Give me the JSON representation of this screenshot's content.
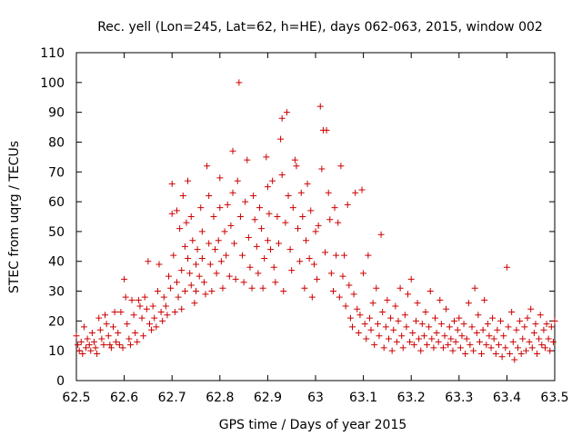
{
  "chart_data": {
    "type": "scatter",
    "title": "Rec. yell (Lon=245, Lat=62, h=HE), days 062-063, 2015, window 002",
    "xlabel": "GPS time / Days of year 2015",
    "ylabel": "STEC from uqrg / TECUs",
    "xlim": [
      62.5,
      63.5
    ],
    "ylim": [
      0,
      110
    ],
    "xticks": [
      62.5,
      62.6,
      62.7,
      62.8,
      62.9,
      63,
      63.1,
      63.2,
      63.3,
      63.4,
      63.5
    ],
    "xtick_labels": [
      "62.5",
      "62.6",
      "62.7",
      "62.8",
      "62.9",
      "63",
      "63.1",
      "63.2",
      "63.3",
      "63.4",
      "63.5"
    ],
    "yticks": [
      0,
      10,
      20,
      30,
      40,
      50,
      60,
      70,
      80,
      90,
      100,
      110
    ],
    "ytick_labels": [
      "0",
      "10",
      "20",
      "30",
      "40",
      "50",
      "60",
      "70",
      "80",
      "90",
      "100",
      "110"
    ],
    "grid": false,
    "legend": "none",
    "marker": "+",
    "color": "#cc0000",
    "series": [
      {
        "points": [
          [
            62.5,
            15
          ],
          [
            62.503,
            12
          ],
          [
            62.506,
            10
          ],
          [
            62.51,
            13
          ],
          [
            62.513,
            9
          ],
          [
            62.516,
            18
          ],
          [
            62.52,
            11
          ],
          [
            62.523,
            14
          ],
          [
            62.527,
            12
          ],
          [
            62.53,
            10
          ],
          [
            62.533,
            16
          ],
          [
            62.537,
            13
          ],
          [
            62.54,
            11
          ],
          [
            62.543,
            9
          ],
          [
            62.547,
            21
          ],
          [
            62.55,
            17
          ],
          [
            62.553,
            14
          ],
          [
            62.557,
            12
          ],
          [
            62.56,
            22
          ],
          [
            62.563,
            19
          ],
          [
            62.567,
            15
          ],
          [
            62.57,
            12
          ],
          [
            62.573,
            11
          ],
          [
            62.577,
            18
          ],
          [
            62.58,
            23
          ],
          [
            62.583,
            13
          ],
          [
            62.587,
            16
          ],
          [
            62.59,
            12
          ],
          [
            62.593,
            23
          ],
          [
            62.597,
            11
          ],
          [
            62.6,
            34
          ],
          [
            62.603,
            28
          ],
          [
            62.606,
            19
          ],
          [
            62.61,
            14
          ],
          [
            62.613,
            12
          ],
          [
            62.616,
            27
          ],
          [
            62.62,
            22
          ],
          [
            62.623,
            16
          ],
          [
            62.627,
            13
          ],
          [
            62.63,
            27
          ],
          [
            62.633,
            25
          ],
          [
            62.637,
            21
          ],
          [
            62.64,
            15
          ],
          [
            62.643,
            28
          ],
          [
            62.647,
            24
          ],
          [
            62.65,
            40
          ],
          [
            62.653,
            19
          ],
          [
            62.657,
            17
          ],
          [
            62.66,
            25
          ],
          [
            62.663,
            21
          ],
          [
            62.667,
            18
          ],
          [
            62.67,
            30
          ],
          [
            62.673,
            39
          ],
          [
            62.677,
            23
          ],
          [
            62.68,
            20
          ],
          [
            62.683,
            28
          ],
          [
            62.687,
            25
          ],
          [
            62.69,
            22
          ],
          [
            62.693,
            35
          ],
          [
            62.697,
            31
          ],
          [
            62.7,
            66
          ],
          [
            62.7,
            56
          ],
          [
            62.703,
            42
          ],
          [
            62.706,
            23
          ],
          [
            62.71,
            57
          ],
          [
            62.71,
            33
          ],
          [
            62.713,
            28
          ],
          [
            62.716,
            51
          ],
          [
            62.72,
            37
          ],
          [
            62.72,
            24
          ],
          [
            62.723,
            62
          ],
          [
            62.727,
            45
          ],
          [
            62.727,
            30
          ],
          [
            62.73,
            53
          ],
          [
            62.733,
            67
          ],
          [
            62.733,
            41
          ],
          [
            62.737,
            36
          ],
          [
            62.74,
            55
          ],
          [
            62.74,
            32
          ],
          [
            62.743,
            47
          ],
          [
            62.747,
            26
          ],
          [
            62.75,
            39
          ],
          [
            62.75,
            30
          ],
          [
            62.753,
            44
          ],
          [
            62.757,
            35
          ],
          [
            62.76,
            58
          ],
          [
            62.763,
            50
          ],
          [
            62.763,
            41
          ],
          [
            62.767,
            33
          ],
          [
            62.77,
            29
          ],
          [
            62.773,
            72
          ],
          [
            62.777,
            62
          ],
          [
            62.777,
            46
          ],
          [
            62.78,
            39
          ],
          [
            62.783,
            30
          ],
          [
            62.787,
            55
          ],
          [
            62.79,
            44
          ],
          [
            62.793,
            36
          ],
          [
            62.797,
            47
          ],
          [
            62.8,
            68
          ],
          [
            62.8,
            58
          ],
          [
            62.803,
            40
          ],
          [
            62.806,
            31
          ],
          [
            62.81,
            50
          ],
          [
            62.813,
            42
          ],
          [
            62.816,
            59
          ],
          [
            62.82,
            35
          ],
          [
            62.823,
            52
          ],
          [
            62.827,
            77
          ],
          [
            62.827,
            63
          ],
          [
            62.83,
            46
          ],
          [
            62.833,
            34
          ],
          [
            62.837,
            67
          ],
          [
            62.84,
            100
          ],
          [
            62.843,
            55
          ],
          [
            62.847,
            42
          ],
          [
            62.85,
            33
          ],
          [
            62.853,
            60
          ],
          [
            62.857,
            74
          ],
          [
            62.86,
            48
          ],
          [
            62.863,
            38
          ],
          [
            62.867,
            31
          ],
          [
            62.87,
            62
          ],
          [
            62.873,
            54
          ],
          [
            62.877,
            45
          ],
          [
            62.88,
            36
          ],
          [
            62.883,
            58
          ],
          [
            62.887,
            51
          ],
          [
            62.89,
            31
          ],
          [
            62.893,
            41
          ],
          [
            62.897,
            75
          ],
          [
            62.9,
            65
          ],
          [
            62.9,
            47
          ],
          [
            62.903,
            56
          ],
          [
            62.906,
            44
          ],
          [
            62.91,
            67
          ],
          [
            62.913,
            38
          ],
          [
            62.916,
            33
          ],
          [
            62.92,
            55
          ],
          [
            62.923,
            46
          ],
          [
            62.927,
            81
          ],
          [
            62.93,
            88
          ],
          [
            62.93,
            69
          ],
          [
            62.933,
            30
          ],
          [
            62.937,
            53
          ],
          [
            62.94,
            90
          ],
          [
            62.943,
            62
          ],
          [
            62.947,
            44
          ],
          [
            62.95,
            37
          ],
          [
            62.953,
            58
          ],
          [
            62.957,
            74
          ],
          [
            62.96,
            72
          ],
          [
            62.963,
            51
          ],
          [
            62.967,
            40
          ],
          [
            62.97,
            63
          ],
          [
            62.973,
            55
          ],
          [
            62.977,
            31
          ],
          [
            62.98,
            47
          ],
          [
            62.983,
            66
          ],
          [
            62.987,
            41
          ],
          [
            62.99,
            57
          ],
          [
            62.993,
            28
          ],
          [
            62.997,
            39
          ],
          [
            63.0,
            50
          ],
          [
            63.003,
            34
          ],
          [
            63.006,
            52
          ],
          [
            63.01,
            92
          ],
          [
            63.013,
            71
          ],
          [
            63.016,
            84
          ],
          [
            63.02,
            43
          ],
          [
            63.023,
            84
          ],
          [
            63.027,
            63
          ],
          [
            63.03,
            54
          ],
          [
            63.033,
            36
          ],
          [
            63.037,
            30
          ],
          [
            63.04,
            58
          ],
          [
            63.043,
            42
          ],
          [
            63.047,
            53
          ],
          [
            63.05,
            28
          ],
          [
            63.053,
            72
          ],
          [
            63.057,
            35
          ],
          [
            63.06,
            42
          ],
          [
            63.063,
            25
          ],
          [
            63.067,
            59
          ],
          [
            63.07,
            32
          ],
          [
            63.073,
            21
          ],
          [
            63.077,
            18
          ],
          [
            63.08,
            29
          ],
          [
            63.083,
            63
          ],
          [
            63.087,
            24
          ],
          [
            63.09,
            16
          ],
          [
            63.093,
            22
          ],
          [
            63.097,
            64
          ],
          [
            63.1,
            36
          ],
          [
            63.103,
            19
          ],
          [
            63.106,
            14
          ],
          [
            63.11,
            42
          ],
          [
            63.113,
            21
          ],
          [
            63.116,
            17
          ],
          [
            63.12,
            26
          ],
          [
            63.123,
            12
          ],
          [
            63.127,
            31
          ],
          [
            63.13,
            19
          ],
          [
            63.133,
            15
          ],
          [
            63.137,
            49
          ],
          [
            63.14,
            23
          ],
          [
            63.143,
            11
          ],
          [
            63.147,
            18
          ],
          [
            63.15,
            27
          ],
          [
            63.153,
            14
          ],
          [
            63.157,
            21
          ],
          [
            63.16,
            10
          ],
          [
            63.163,
            17
          ],
          [
            63.167,
            25
          ],
          [
            63.17,
            13
          ],
          [
            63.173,
            20
          ],
          [
            63.177,
            31
          ],
          [
            63.18,
            15
          ],
          [
            63.183,
            11
          ],
          [
            63.187,
            22
          ],
          [
            63.19,
            18
          ],
          [
            63.193,
            29
          ],
          [
            63.197,
            13
          ],
          [
            63.2,
            34
          ],
          [
            63.203,
            16
          ],
          [
            63.206,
            12
          ],
          [
            63.21,
            20
          ],
          [
            63.213,
            26
          ],
          [
            63.216,
            14
          ],
          [
            63.22,
            10
          ],
          [
            63.223,
            19
          ],
          [
            63.227,
            15
          ],
          [
            63.23,
            23
          ],
          [
            63.233,
            12
          ],
          [
            63.237,
            18
          ],
          [
            63.24,
            30
          ],
          [
            63.243,
            14
          ],
          [
            63.247,
            11
          ],
          [
            63.25,
            21
          ],
          [
            63.253,
            16
          ],
          [
            63.257,
            13
          ],
          [
            63.26,
            27
          ],
          [
            63.263,
            19
          ],
          [
            63.267,
            11
          ],
          [
            63.27,
            15
          ],
          [
            63.273,
            24
          ],
          [
            63.277,
            12
          ],
          [
            63.28,
            18
          ],
          [
            63.283,
            14
          ],
          [
            63.287,
            10
          ],
          [
            63.29,
            20
          ],
          [
            63.293,
            13
          ],
          [
            63.297,
            17
          ],
          [
            63.3,
            21
          ],
          [
            63.303,
            11
          ],
          [
            63.306,
            15
          ],
          [
            63.31,
            19
          ],
          [
            63.313,
            9
          ],
          [
            63.316,
            14
          ],
          [
            63.32,
            26
          ],
          [
            63.323,
            12
          ],
          [
            63.327,
            18
          ],
          [
            63.33,
            10
          ],
          [
            63.333,
            31
          ],
          [
            63.337,
            16
          ],
          [
            63.34,
            22
          ],
          [
            63.343,
            13
          ],
          [
            63.347,
            9
          ],
          [
            63.35,
            17
          ],
          [
            63.353,
            27
          ],
          [
            63.357,
            12
          ],
          [
            63.36,
            19
          ],
          [
            63.363,
            15
          ],
          [
            63.367,
            11
          ],
          [
            63.37,
            21
          ],
          [
            63.373,
            14
          ],
          [
            63.377,
            9
          ],
          [
            63.38,
            17
          ],
          [
            63.383,
            12
          ],
          [
            63.387,
            20
          ],
          [
            63.39,
            8
          ],
          [
            63.393,
            15
          ],
          [
            63.397,
            11
          ],
          [
            63.4,
            38
          ],
          [
            63.403,
            18
          ],
          [
            63.406,
            9
          ],
          [
            63.41,
            23
          ],
          [
            63.413,
            13
          ],
          [
            63.416,
            7
          ],
          [
            63.42,
            17
          ],
          [
            63.423,
            11
          ],
          [
            63.427,
            20
          ],
          [
            63.43,
            9
          ],
          [
            63.433,
            14
          ],
          [
            63.437,
            18
          ],
          [
            63.44,
            10
          ],
          [
            63.443,
            21
          ],
          [
            63.447,
            13
          ],
          [
            63.45,
            24
          ],
          [
            63.453,
            11
          ],
          [
            63.457,
            16
          ],
          [
            63.46,
            19
          ],
          [
            63.463,
            9
          ],
          [
            63.467,
            14
          ],
          [
            63.47,
            22
          ],
          [
            63.473,
            12
          ],
          [
            63.477,
            17
          ],
          [
            63.48,
            11
          ],
          [
            63.483,
            19
          ],
          [
            63.487,
            14
          ],
          [
            63.49,
            10
          ],
          [
            63.493,
            18
          ],
          [
            63.497,
            13
          ],
          [
            63.5,
            20
          ]
        ]
      }
    ]
  }
}
